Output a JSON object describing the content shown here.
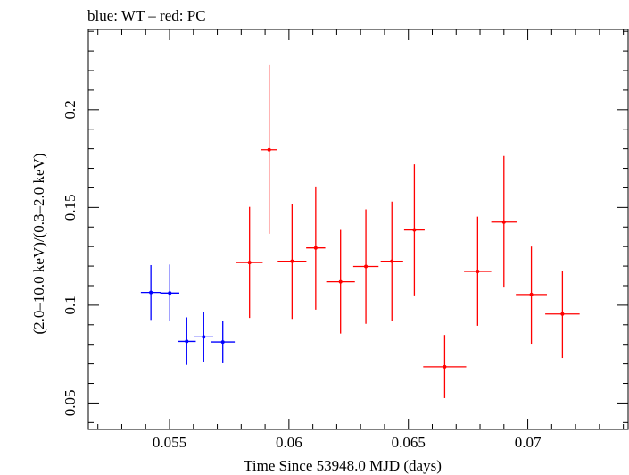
{
  "chart_data": {
    "type": "scatter",
    "title": "blue: WT – red: PC",
    "xlabel": "Time Since 53948.0 MJD (days)",
    "ylabel": "(2.0–10.0 keV)/(0.3–2.0 keV)",
    "xlim": [
      0.0516,
      0.0742
    ],
    "ylim": [
      0.0365,
      0.241
    ],
    "xticks": [
      {
        "value": 0.055,
        "label": "0.055"
      },
      {
        "value": 0.06,
        "label": "0.06"
      },
      {
        "value": 0.065,
        "label": "0.065"
      },
      {
        "value": 0.07,
        "label": "0.07"
      }
    ],
    "yticks": [
      {
        "value": 0.05,
        "label": "0.05"
      },
      {
        "value": 0.1,
        "label": "0.1"
      },
      {
        "value": 0.15,
        "label": "0.15"
      },
      {
        "value": 0.2,
        "label": "0.2"
      }
    ],
    "grid": false,
    "series": [
      {
        "color": "#0000ff",
        "points": [
          {
            "x": 0.05422,
            "xerr": 0.00042,
            "y": 0.1065,
            "ylo": 0.0925,
            "yhi": 0.1205
          },
          {
            "x": 0.05501,
            "xerr": 0.0004,
            "y": 0.1062,
            "ylo": 0.0922,
            "yhi": 0.1208
          },
          {
            "x": 0.05572,
            "xerr": 0.00038,
            "y": 0.0815,
            "ylo": 0.0695,
            "yhi": 0.0938
          },
          {
            "x": 0.05643,
            "xerr": 0.0004,
            "y": 0.0838,
            "ylo": 0.0712,
            "yhi": 0.0965
          },
          {
            "x": 0.05723,
            "xerr": 0.0005,
            "y": 0.0812,
            "ylo": 0.0703,
            "yhi": 0.0921
          }
        ]
      },
      {
        "color": "#ff0000",
        "points": [
          {
            "x": 0.05835,
            "xerr": 0.00055,
            "y": 0.1218,
            "ylo": 0.0935,
            "yhi": 0.1503
          },
          {
            "x": 0.05917,
            "xerr": 0.00033,
            "y": 0.1795,
            "ylo": 0.1365,
            "yhi": 0.2228
          },
          {
            "x": 0.06013,
            "xerr": 0.0006,
            "y": 0.1225,
            "ylo": 0.093,
            "yhi": 0.1518
          },
          {
            "x": 0.06112,
            "xerr": 0.0004,
            "y": 0.1293,
            "ylo": 0.0977,
            "yhi": 0.1607
          },
          {
            "x": 0.06216,
            "xerr": 0.0006,
            "y": 0.112,
            "ylo": 0.0855,
            "yhi": 0.1385
          },
          {
            "x": 0.06322,
            "xerr": 0.00053,
            "y": 0.1198,
            "ylo": 0.0905,
            "yhi": 0.149
          },
          {
            "x": 0.06431,
            "xerr": 0.00047,
            "y": 0.1225,
            "ylo": 0.092,
            "yhi": 0.153
          },
          {
            "x": 0.06525,
            "xerr": 0.00043,
            "y": 0.1385,
            "ylo": 0.105,
            "yhi": 0.172
          },
          {
            "x": 0.06652,
            "xerr": 0.0009,
            "y": 0.0685,
            "ylo": 0.0525,
            "yhi": 0.0848
          },
          {
            "x": 0.0679,
            "xerr": 0.00057,
            "y": 0.1173,
            "ylo": 0.0895,
            "yhi": 0.1453
          },
          {
            "x": 0.069,
            "xerr": 0.00053,
            "y": 0.1425,
            "ylo": 0.109,
            "yhi": 0.1763
          },
          {
            "x": 0.07015,
            "xerr": 0.00065,
            "y": 0.1055,
            "ylo": 0.0803,
            "yhi": 0.13
          },
          {
            "x": 0.07145,
            "xerr": 0.00072,
            "y": 0.0955,
            "ylo": 0.073,
            "yhi": 0.1173
          }
        ]
      }
    ]
  }
}
